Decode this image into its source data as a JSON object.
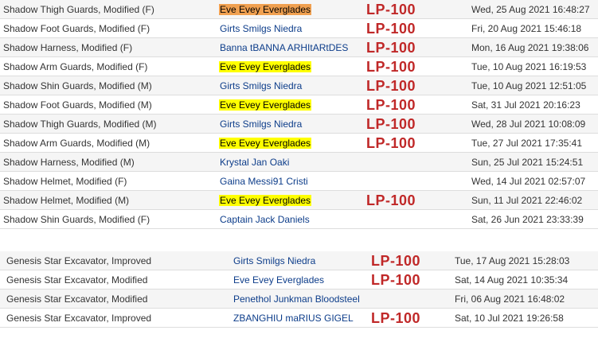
{
  "table_1": [
    {
      "item": "Shadow Thigh Guards, Modified (F)",
      "player": "Eve Evey Everglades",
      "highlight": "orange",
      "tag": "LP-100",
      "date": "Wed, 25 Aug 2021 16:48:27"
    },
    {
      "item": "Shadow Foot Guards, Modified (F)",
      "player": "Girts Smilgs Niedra",
      "highlight": "",
      "tag": "LP-100",
      "date": "Fri, 20 Aug 2021 15:46:18"
    },
    {
      "item": "Shadow Harness, Modified (F)",
      "player": "Banna tBANNA ARHItARtDES",
      "highlight": "",
      "tag": "LP-100",
      "date": "Mon, 16 Aug 2021 19:38:06"
    },
    {
      "item": "Shadow Arm Guards, Modified (F)",
      "player": "Eve Evey Everglades",
      "highlight": "yellow",
      "tag": "LP-100",
      "date": "Tue, 10 Aug 2021 16:19:53"
    },
    {
      "item": "Shadow Shin Guards, Modified (M)",
      "player": "Girts Smilgs Niedra",
      "highlight": "",
      "tag": "LP-100",
      "date": "Tue, 10 Aug 2021 12:51:05"
    },
    {
      "item": "Shadow Foot Guards, Modified (M)",
      "player": "Eve Evey Everglades",
      "highlight": "yellow",
      "tag": "LP-100",
      "date": "Sat, 31 Jul 2021 20:16:23"
    },
    {
      "item": "Shadow Thigh Guards, Modified (M)",
      "player": "Girts Smilgs Niedra",
      "highlight": "",
      "tag": "LP-100",
      "date": "Wed, 28 Jul 2021 10:08:09"
    },
    {
      "item": "Shadow Arm Guards, Modified (M)",
      "player": "Eve Evey Everglades",
      "highlight": "yellow",
      "tag": "LP-100",
      "date": "Tue, 27 Jul 2021 17:35:41"
    },
    {
      "item": "Shadow Harness, Modified (M)",
      "player": "Krystal Jan Oaki",
      "highlight": "",
      "tag": "",
      "date": "Sun, 25 Jul 2021 15:24:51"
    },
    {
      "item": "Shadow Helmet, Modified (F)",
      "player": "Gaina Messi91 Cristi",
      "highlight": "",
      "tag": "",
      "date": "Wed, 14 Jul 2021 02:57:07"
    },
    {
      "item": "Shadow Helmet, Modified (M)",
      "player": "Eve Evey Everglades",
      "highlight": "yellow",
      "tag": "LP-100",
      "date": "Sun, 11 Jul 2021 22:46:02"
    },
    {
      "item": "Shadow Shin Guards, Modified (F)",
      "player": "Captain Jack Daniels",
      "highlight": "",
      "tag": "",
      "date": "Sat, 26 Jun 2021 23:33:39"
    }
  ],
  "table_2": [
    {
      "item": "Genesis Star Excavator, Improved",
      "player": "Girts Smilgs Niedra",
      "highlight": "",
      "tag": "LP-100",
      "date": "Tue, 17 Aug 2021 15:28:03"
    },
    {
      "item": "Genesis Star Excavator, Modified",
      "player": "Eve Evey Everglades",
      "highlight": "",
      "tag": "LP-100",
      "date": "Sat, 14 Aug 2021 10:35:34"
    },
    {
      "item": "Genesis Star Excavator, Modified",
      "player": "Penethol Junkman Bloodsteel",
      "highlight": "",
      "tag": "",
      "date": "Fri, 06 Aug 2021 16:48:02"
    },
    {
      "item": "Genesis Star Excavator, Improved",
      "player": "ZBANGHIU maRIUS GIGEL",
      "highlight": "",
      "tag": "LP-100",
      "date": "Sat, 10 Jul 2021 19:26:58"
    }
  ]
}
